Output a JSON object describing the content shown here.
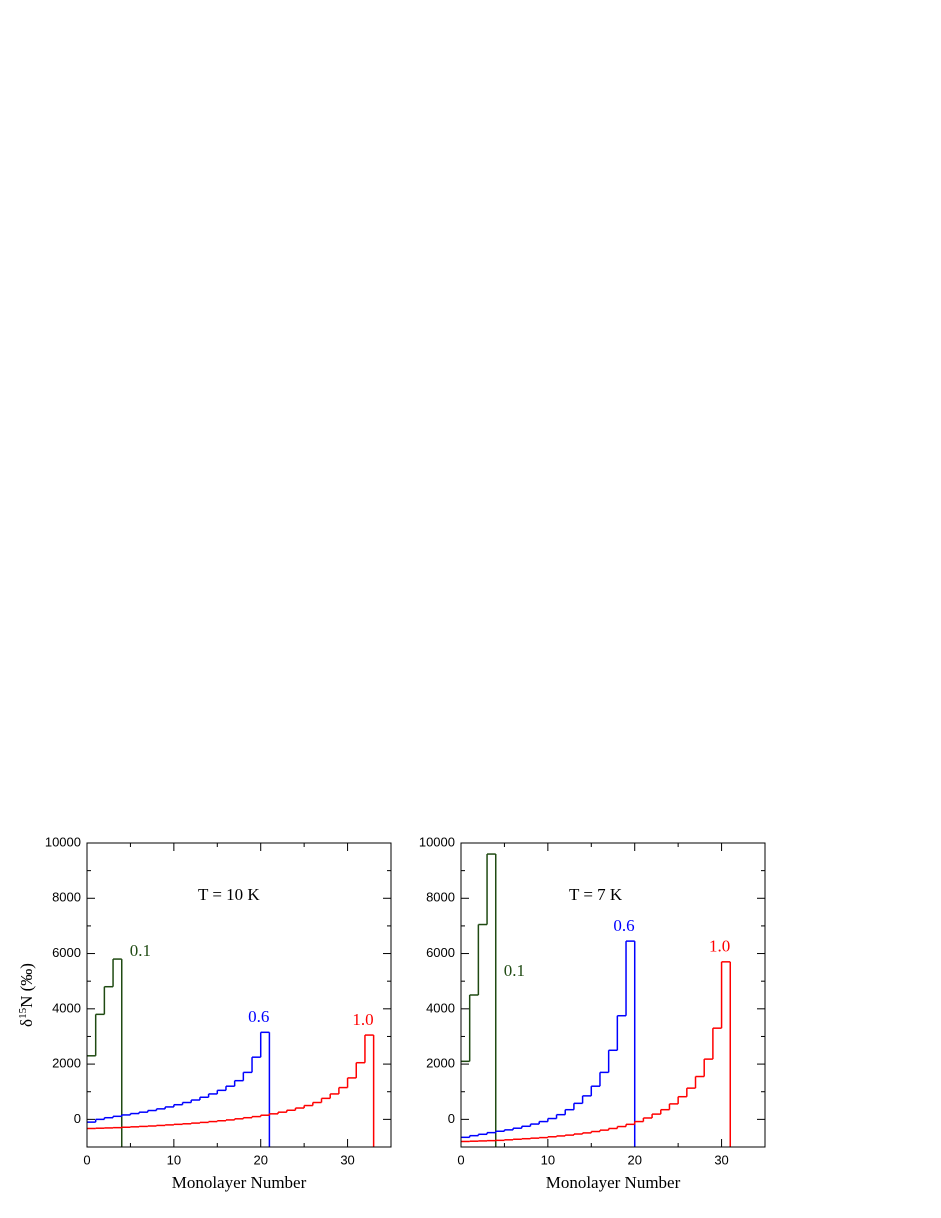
{
  "chart_data": [
    {
      "type": "histogram",
      "annotation": "T = 10 K",
      "xlabel": "Monolayer Number",
      "ylabel": [
        "δ",
        "15",
        "N (‰)"
      ],
      "xlim": [
        0,
        35
      ],
      "ylim": [
        -1000,
        10000
      ],
      "xticks": [
        0,
        10,
        20,
        30
      ],
      "yticks": [
        0,
        2000,
        4000,
        6000,
        8000,
        10000
      ],
      "series": [
        {
          "name": "0.1",
          "color": "#1f4a12",
          "bins": [
            0,
            1,
            2,
            3,
            4
          ],
          "values": [
            2300,
            3800,
            4800,
            5800
          ]
        },
        {
          "name": "0.6",
          "color": "#0000ff",
          "bins": [
            0,
            1,
            2,
            3,
            4,
            5,
            6,
            7,
            8,
            9,
            10,
            11,
            12,
            13,
            14,
            15,
            16,
            17,
            18,
            19,
            20,
            21
          ],
          "values": [
            -100,
            0,
            60,
            110,
            160,
            210,
            260,
            320,
            380,
            450,
            530,
            610,
            700,
            800,
            920,
            1050,
            1200,
            1400,
            1700,
            2250,
            3150
          ]
        },
        {
          "name": "1.0",
          "color": "#ff0000",
          "bins": [
            0,
            1,
            2,
            3,
            4,
            5,
            6,
            7,
            8,
            9,
            10,
            11,
            12,
            13,
            14,
            15,
            16,
            17,
            18,
            19,
            20,
            21,
            22,
            23,
            24,
            25,
            26,
            27,
            28,
            29,
            30,
            31,
            32,
            33
          ],
          "values": [
            -330,
            -320,
            -310,
            -300,
            -285,
            -270,
            -255,
            -240,
            -220,
            -200,
            -180,
            -160,
            -135,
            -110,
            -80,
            -50,
            -20,
            20,
            60,
            100,
            150,
            200,
            260,
            330,
            410,
            500,
            610,
            760,
            920,
            1150,
            1500,
            2050,
            3050
          ]
        }
      ]
    },
    {
      "type": "histogram",
      "annotation": "T = 7 K",
      "xlabel": "Monolayer Number",
      "xlim": [
        0,
        35
      ],
      "ylim": [
        -1000,
        10000
      ],
      "xticks": [
        0,
        10,
        20,
        30
      ],
      "yticks": [
        0,
        2000,
        4000,
        6000,
        8000,
        10000
      ],
      "series": [
        {
          "name": "0.1",
          "color": "#1f4a12",
          "bins": [
            0,
            1,
            2,
            3,
            4
          ],
          "values": [
            2100,
            4500,
            7050,
            9600
          ]
        },
        {
          "name": "0.6",
          "color": "#0000ff",
          "bins": [
            0,
            1,
            2,
            3,
            4,
            5,
            6,
            7,
            8,
            9,
            10,
            11,
            12,
            13,
            14,
            15,
            16,
            17,
            18,
            19,
            20
          ],
          "values": [
            -650,
            -590,
            -540,
            -480,
            -430,
            -380,
            -320,
            -250,
            -170,
            -80,
            30,
            170,
            350,
            580,
            850,
            1200,
            1700,
            2500,
            3750,
            6450
          ]
        },
        {
          "name": "1.0",
          "color": "#ff0000",
          "bins": [
            0,
            1,
            2,
            3,
            4,
            5,
            6,
            7,
            8,
            9,
            10,
            11,
            12,
            13,
            14,
            15,
            16,
            17,
            18,
            19,
            20,
            21,
            22,
            23,
            24,
            25,
            26,
            27,
            28,
            29,
            30,
            31
          ],
          "values": [
            -800,
            -790,
            -780,
            -770,
            -760,
            -740,
            -720,
            -700,
            -680,
            -660,
            -630,
            -600,
            -570,
            -530,
            -490,
            -440,
            -390,
            -330,
            -260,
            -180,
            -80,
            50,
            190,
            350,
            560,
            820,
            1130,
            1550,
            2180,
            3300,
            5700
          ]
        }
      ]
    }
  ]
}
